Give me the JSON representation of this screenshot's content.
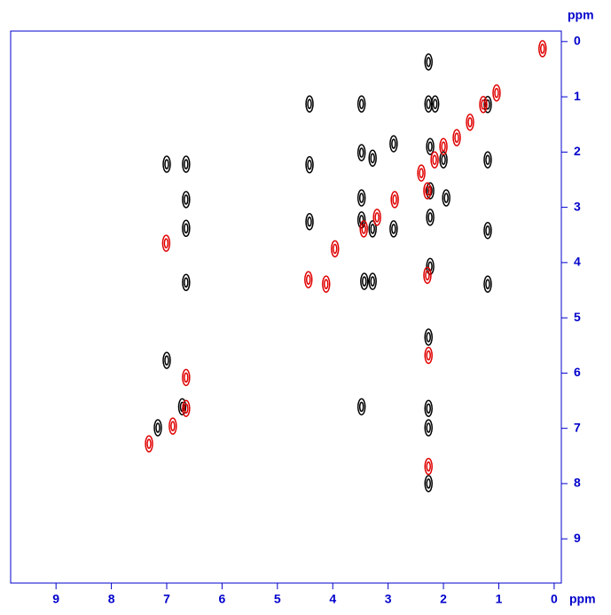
{
  "chart_data": {
    "type": "scatter",
    "xlabel": "ppm",
    "ylabel": "ppm",
    "xlim": [
      9.82,
      -0.13
    ],
    "ylim": [
      -0.19,
      9.8
    ],
    "xticks": [
      0,
      1,
      2,
      3,
      4,
      5,
      6,
      7,
      8,
      9
    ],
    "yticks": [
      0,
      1,
      2,
      3,
      4,
      5,
      6,
      7,
      8,
      9
    ],
    "axis_color": "#0000cc",
    "series": [
      {
        "color": "#000000",
        "x": [
          7.0,
          6.65,
          6.65,
          6.65,
          6.65,
          7.0,
          4.42,
          4.42,
          4.42,
          3.48,
          3.48,
          3.48,
          3.48,
          3.43,
          3.28,
          3.28,
          2.9,
          2.9,
          3.28,
          2.27,
          2.27,
          2.24,
          2.24,
          2.24,
          2.24,
          2.27,
          2.27,
          2.27,
          2.27,
          2.15,
          2.0,
          1.95,
          3.48,
          1.2,
          1.2,
          1.2,
          1.2,
          7.16,
          6.72
        ],
        "y": [
          2.22,
          2.22,
          2.86,
          3.38,
          4.36,
          5.77,
          1.13,
          2.23,
          3.26,
          1.13,
          2.01,
          2.83,
          3.23,
          4.34,
          2.11,
          4.34,
          1.85,
          3.39,
          3.39,
          0.37,
          1.13,
          1.9,
          2.7,
          3.18,
          4.07,
          5.35,
          6.64,
          6.99,
          8.0,
          1.13,
          2.14,
          2.83,
          6.61,
          2.14,
          3.42,
          4.39,
          1.14,
          6.99,
          6.61
        ]
      },
      {
        "color": "#e00000",
        "x": [
          0.21,
          1.28,
          1.04,
          1.52,
          1.76,
          2.0,
          2.16,
          2.4,
          2.29,
          2.88,
          3.2,
          3.44,
          3.96,
          4.44,
          4.12,
          2.29,
          7.01,
          6.65,
          6.89,
          7.32,
          2.27,
          2.27,
          6.65
        ],
        "y": [
          0.13,
          1.14,
          0.93,
          1.46,
          1.74,
          1.9,
          2.14,
          2.38,
          2.7,
          2.86,
          3.18,
          3.39,
          3.75,
          4.31,
          4.39,
          4.23,
          3.65,
          6.64,
          6.96,
          7.28,
          7.69,
          5.68,
          6.08
        ]
      }
    ]
  }
}
